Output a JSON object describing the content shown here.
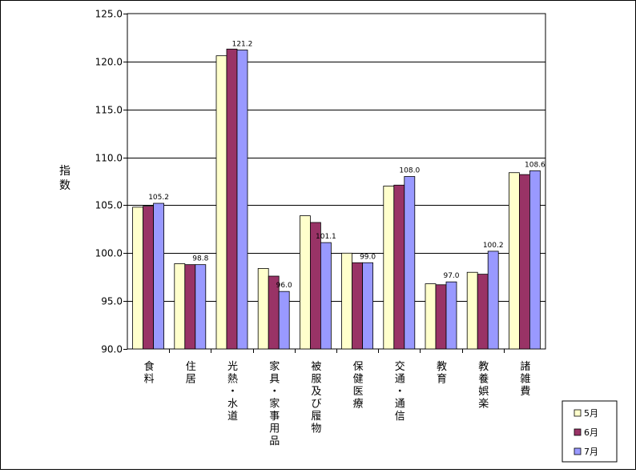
{
  "chart_data": {
    "type": "bar",
    "xlabel": "",
    "ylabel": "指数",
    "ylim": [
      90,
      125
    ],
    "yticks": [
      "90.0",
      "95.0",
      "100.0",
      "105.0",
      "110.0",
      "115.0",
      "120.0",
      "125.0"
    ],
    "grid": true,
    "legend_position": "bottom-right",
    "categories": [
      "食料",
      "住居",
      "光熱・水道",
      "家具・家事用品",
      "被服及び履物",
      "保健医療",
      "交通・通信",
      "教育",
      "教養娯楽",
      "諸雑費"
    ],
    "series": [
      {
        "name": "5月",
        "color": "#FFFFCC",
        "values": [
          104.8,
          98.9,
          120.6,
          98.4,
          103.9,
          100.0,
          107.0,
          96.8,
          98.0,
          108.4
        ]
      },
      {
        "name": "6月",
        "color": "#993366",
        "values": [
          104.9,
          98.8,
          121.3,
          97.6,
          103.2,
          99.0,
          107.1,
          96.7,
          97.8,
          108.2
        ]
      },
      {
        "name": "7月",
        "color": "#9999FF",
        "values": [
          105.2,
          98.8,
          121.2,
          96.0,
          101.1,
          99.0,
          108.0,
          97.0,
          100.2,
          108.6
        ]
      }
    ],
    "data_labels": [
      "105.2",
      "98.8",
      "121.2",
      "96.0",
      "101.1",
      "99.0",
      "108.0",
      "97.0",
      "100.2",
      "108.6"
    ]
  }
}
